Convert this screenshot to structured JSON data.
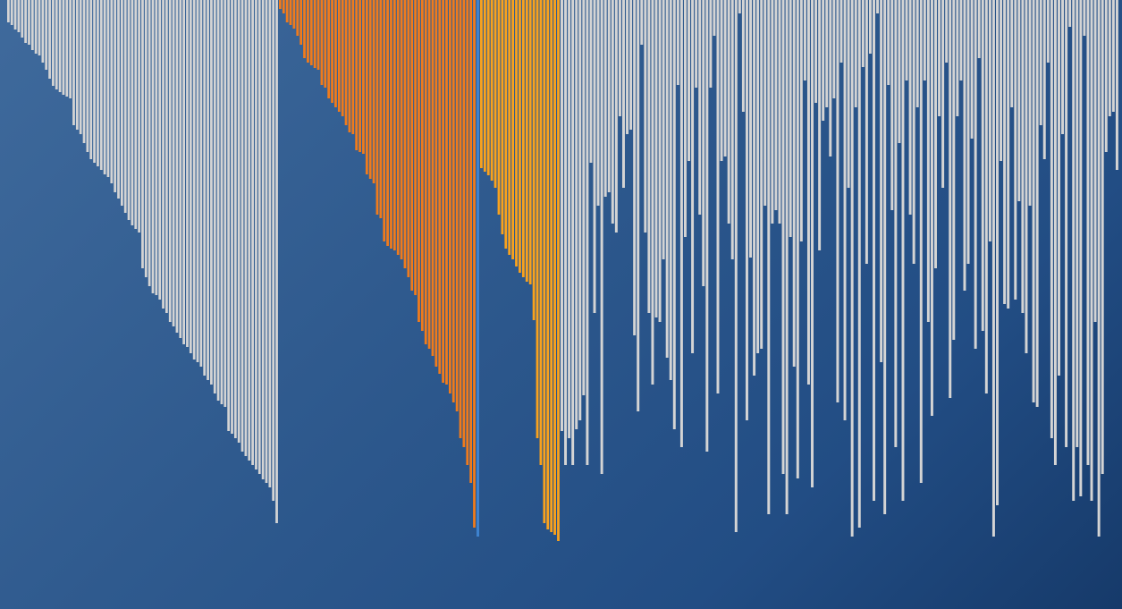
{
  "colors": {
    "background_top_left": "#3f6a9c",
    "background_bottom_right": "#163a6a",
    "bar_light": "#d4d4d4",
    "bar_dark_orange": "#f07b1c",
    "bar_light_orange": "#f9a21d",
    "divider_blue": "#3d82cf"
  },
  "chart_data": {
    "type": "bar",
    "orientation": "hanging-from-top",
    "value_range": [
      0,
      681
    ],
    "grid": false,
    "legend": "none",
    "segments": [
      {
        "color_key": "bar_light",
        "values": [
          25,
          28,
          33,
          36,
          42,
          48,
          50,
          56,
          60,
          62,
          70,
          78,
          88,
          96,
          100,
          103,
          106,
          108,
          110,
          140,
          145,
          150,
          160,
          170,
          178,
          182,
          186,
          190,
          195,
          198,
          205,
          215,
          222,
          230,
          238,
          246,
          252,
          256,
          260,
          300,
          310,
          320,
          328,
          330,
          335,
          345,
          350,
          360,
          365,
          372,
          378,
          385,
          388,
          395,
          402,
          405,
          410,
          420,
          425,
          430,
          440,
          448,
          452,
          455,
          482,
          485,
          490,
          495,
          505,
          510,
          515,
          520,
          525,
          530,
          536,
          540,
          545,
          560,
          585
        ]
      },
      {
        "color_key": "bar_dark_orange",
        "values": [
          10,
          15,
          25,
          28,
          32,
          40,
          50,
          65,
          70,
          73,
          76,
          78,
          95,
          98,
          110,
          115,
          120,
          125,
          130,
          140,
          148,
          150,
          168,
          170,
          172,
          195,
          200,
          205,
          240,
          244,
          270,
          275,
          278,
          280,
          285,
          290,
          300,
          310,
          325,
          330,
          360,
          370,
          385,
          390,
          398,
          410,
          418,
          428,
          430,
          440,
          450,
          460,
          490,
          500,
          520,
          540,
          590
        ]
      },
      {
        "color_key": "divider_blue",
        "values": [
          600
        ]
      },
      {
        "color_key": "bar_light_orange",
        "values": [
          188,
          192,
          196,
          202,
          210,
          240,
          262,
          278,
          285,
          290,
          298,
          305,
          310,
          315,
          318,
          358,
          490,
          520,
          585,
          592,
          595,
          598,
          605
        ]
      },
      {
        "color_key": "bar_light",
        "values": [
          482,
          520,
          490,
          520,
          480,
          470,
          442,
          520,
          182,
          350,
          230,
          530,
          220,
          215,
          250,
          260,
          130,
          210,
          150,
          145,
          375,
          460,
          50,
          260,
          350,
          430,
          355,
          360,
          290,
          400,
          425,
          480,
          95,
          500,
          265,
          180,
          395,
          98,
          240,
          320,
          505,
          98,
          40,
          440,
          180,
          175,
          250,
          290,
          595,
          15,
          125,
          470,
          288,
          420,
          395,
          390,
          230,
          575,
          250,
          235,
          250,
          530,
          575,
          265,
          410,
          535,
          270,
          90,
          430,
          545,
          115,
          280,
          135,
          120,
          175,
          110,
          450,
          70,
          470,
          210,
          600,
          120,
          590,
          75,
          295,
          60,
          560,
          15,
          405,
          575,
          95,
          235,
          500,
          160,
          560,
          90,
          240,
          295,
          120,
          540,
          90,
          360,
          465,
          300,
          130,
          210,
          70,
          445,
          380,
          130,
          90,
          325,
          295,
          155,
          390,
          65,
          370,
          440,
          270,
          600,
          565,
          180,
          340,
          345,
          120,
          335,
          225,
          350,
          395,
          230,
          450,
          455,
          140,
          178,
          70,
          490,
          520,
          420,
          150,
          500,
          30,
          560,
          500,
          555,
          40,
          520,
          560,
          360,
          600,
          530,
          170,
          130,
          125,
          190
        ]
      }
    ]
  }
}
